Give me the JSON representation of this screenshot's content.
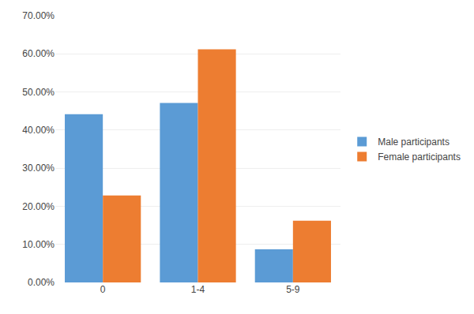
{
  "chart_data": {
    "type": "bar",
    "categories": [
      "0",
      "1-4",
      "5-9"
    ],
    "series": [
      {
        "name": "Male participants",
        "color": "#5B9BD5",
        "values": [
          0.4419,
          0.4709,
          0.0872
        ]
      },
      {
        "name": "Female participants",
        "color": "#ED7D31",
        "values": [
          0.2282,
          0.612,
          0.1618
        ]
      }
    ],
    "ylim": [
      0.0,
      0.7
    ],
    "yticks": [
      {
        "value": 0.0,
        "label": "0.00%"
      },
      {
        "value": 0.1,
        "label": "10.00%"
      },
      {
        "value": 0.2,
        "label": "20.00%"
      },
      {
        "value": 0.3,
        "label": "30.00%"
      },
      {
        "value": 0.4,
        "label": "40.00%"
      },
      {
        "value": 0.5,
        "label": "50.00%"
      },
      {
        "value": 0.6,
        "label": "60.00%"
      },
      {
        "value": 0.7,
        "label": "70.00%"
      }
    ],
    "grid": true,
    "legend": "right"
  }
}
